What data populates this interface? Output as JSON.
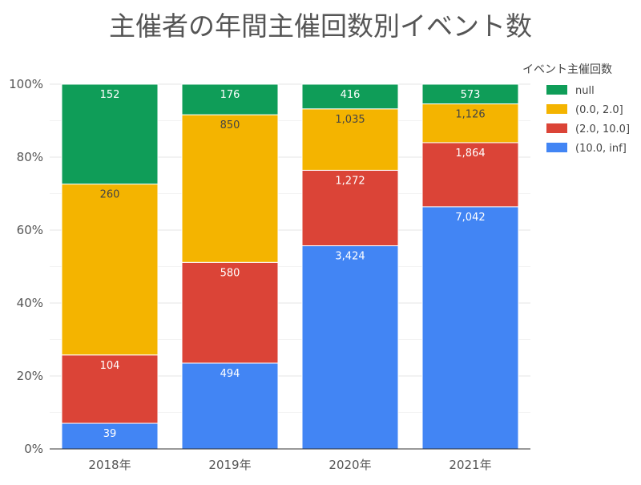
{
  "chart_data": {
    "type": "bar",
    "stacked": true,
    "normalized": true,
    "title": "主催者の年間主催回数別イベント数",
    "legend_title": "イベント主催回数",
    "legend_position": "right",
    "categories": [
      "2018年",
      "2019年",
      "2020年",
      "2021年"
    ],
    "y_ticks": [
      "0%",
      "20%",
      "40%",
      "60%",
      "80%",
      "100%"
    ],
    "ylim": [
      0,
      100
    ],
    "grid": true,
    "series": [
      {
        "name": "(10.0, inf]",
        "color": "#4285F4",
        "label_color": "#ffffff",
        "values": [
          39,
          494,
          3424,
          7042
        ],
        "labels": [
          "39",
          "494",
          "3,424",
          "7,042"
        ]
      },
      {
        "name": "(2.0, 10.0]",
        "color": "#DB4437",
        "label_color": "#ffffff",
        "values": [
          104,
          580,
          1272,
          1864
        ],
        "labels": [
          "104",
          "580",
          "1,272",
          "1,864"
        ]
      },
      {
        "name": "(0.0, 2.0]",
        "color": "#F4B400",
        "label_color": "#444444",
        "values": [
          260,
          850,
          1035,
          1126
        ],
        "labels": [
          "260",
          "850",
          "1,035",
          "1,126"
        ]
      },
      {
        "name": "null",
        "color": "#0F9D58",
        "label_color": "#ffffff",
        "values": [
          152,
          176,
          416,
          573
        ],
        "labels": [
          "152",
          "176",
          "416",
          "573"
        ]
      }
    ],
    "legend_order": [
      "null",
      "(0.0, 2.0]",
      "(2.0, 10.0]",
      "(10.0, inf]"
    ]
  }
}
